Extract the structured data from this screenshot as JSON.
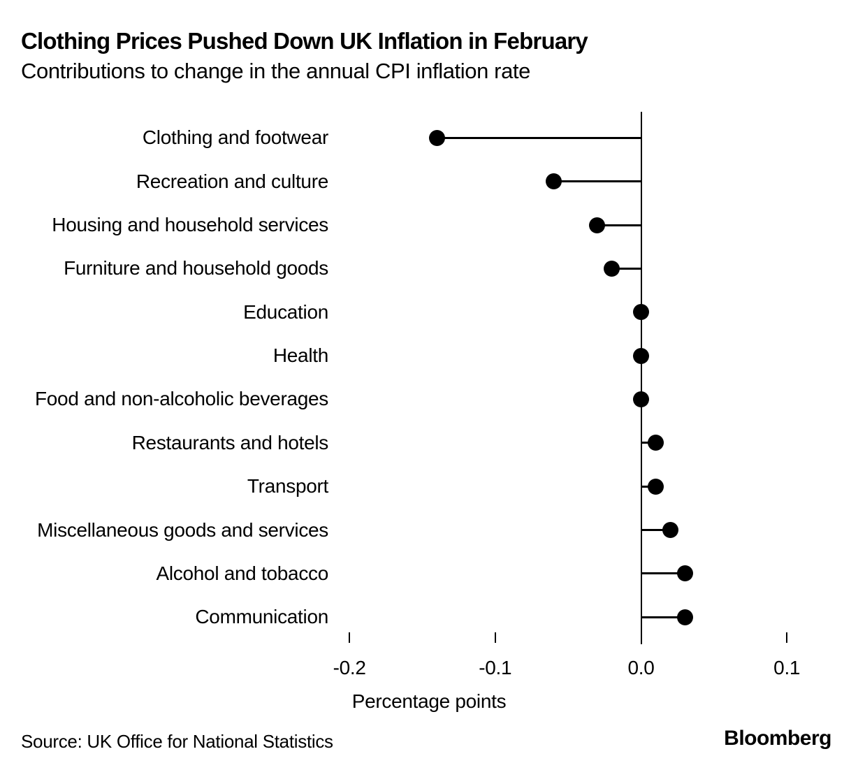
{
  "chart_data": {
    "type": "lollipop",
    "orientation": "horizontal",
    "title": "Clothing Prices Pushed Down UK Inflation in February",
    "subtitle": "Contributions to change in the annual CPI inflation rate",
    "categories": [
      "Clothing and footwear",
      "Recreation and culture",
      "Housing and household services",
      "Furniture and household goods",
      "Education",
      "Health",
      "Food and non-alcoholic beverages",
      "Restaurants and hotels",
      "Transport",
      "Miscellaneous goods and services",
      "Alcohol and tobacco",
      "Communication"
    ],
    "values": [
      -0.14,
      -0.06,
      -0.03,
      -0.02,
      0,
      0,
      0,
      0.01,
      0.01,
      0.02,
      0.03,
      0.03
    ],
    "xlabel": "Percentage points",
    "x_ticks": [
      -0.2,
      -0.1,
      0,
      0.1
    ],
    "x_tick_labels": [
      "-0.2",
      "-0.1",
      "0.0",
      "0.1"
    ],
    "xlim": [
      -0.21,
      0.15
    ],
    "baseline": 0,
    "grid": false,
    "legend": false,
    "marker_color": "#000000",
    "background_color": "#ffffff",
    "text_color": "#000000"
  },
  "footer": {
    "source": "Source: UK Office for National Statistics",
    "brand": "Bloomberg"
  }
}
